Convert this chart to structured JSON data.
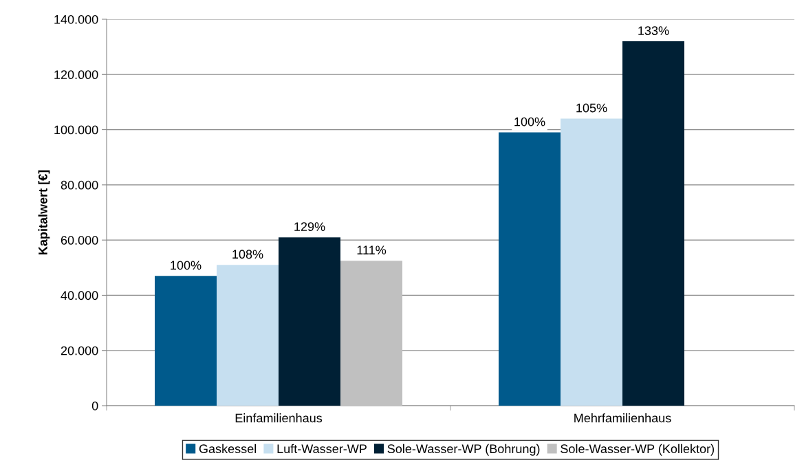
{
  "chart_data": {
    "type": "bar",
    "ylabel": "Kapitalwert [€]",
    "categories": [
      "Einfamilienhaus",
      "Mehrfamilienhaus"
    ],
    "series": [
      {
        "name": "Gaskessel",
        "color": "#005a8c",
        "values": [
          47000,
          99000
        ]
      },
      {
        "name": "Luft-Wasser-WP",
        "color": "#c6dff0",
        "values": [
          51000,
          104000
        ]
      },
      {
        "name": "Sole-Wasser-WP (Bohrung)",
        "color": "#002035",
        "values": [
          61000,
          132000
        ]
      },
      {
        "name": "Sole-Wasser-WP (Kollektor)",
        "color": "#c0c0c0",
        "values": [
          52500,
          null
        ]
      }
    ],
    "annotations": [
      "100%",
      "108%",
      "129%",
      "111%",
      "100%",
      "105%",
      "133%"
    ],
    "ylim": [
      0,
      140000
    ],
    "yticks": [
      {
        "value": 0,
        "label": "0"
      },
      {
        "value": 20000,
        "label": "20.000"
      },
      {
        "value": 40000,
        "label": "40.000"
      },
      {
        "value": 60000,
        "label": "60.000"
      },
      {
        "value": 80000,
        "label": "80.000"
      },
      {
        "value": 100000,
        "label": "100.000"
      },
      {
        "value": 120000,
        "label": "120.000"
      },
      {
        "value": 140000,
        "label": "140.000"
      }
    ],
    "grid": "y",
    "legend": "bottom"
  }
}
